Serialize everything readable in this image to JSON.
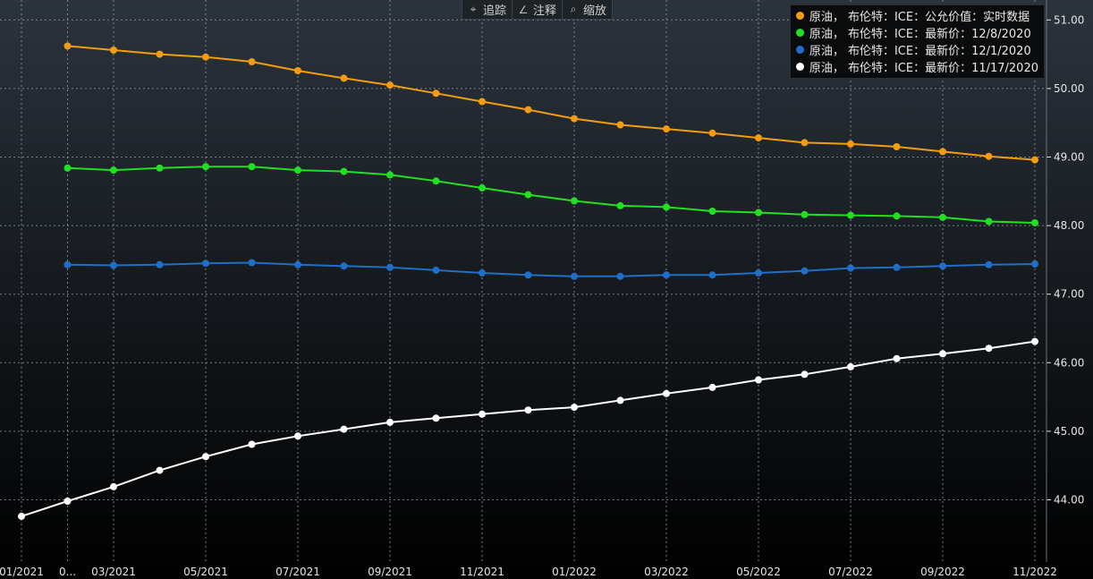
{
  "toolbar": {
    "items": [
      {
        "label": "追踪",
        "icon": "crosshair-icon",
        "glyph": "⌖"
      },
      {
        "label": "注释",
        "icon": "annotate-icon",
        "glyph": "∠"
      },
      {
        "label": "缩放",
        "icon": "zoom-icon",
        "glyph": "⌕"
      }
    ]
  },
  "colors": {
    "background_top": "#2b333c",
    "background_bottom": "#000000",
    "grid": "#9aa3ad",
    "axis_text": "#e6e6e6"
  },
  "chart_data": {
    "type": "line",
    "title": "",
    "xlabel": "",
    "ylabel": "",
    "legend_position": "top-right",
    "grid": true,
    "y_axis_side": "right",
    "ylim": [
      43.2,
      51.3
    ],
    "y_ticks": [
      44,
      45,
      46,
      47,
      48,
      49,
      50,
      51
    ],
    "y_tick_labels": [
      "44.00",
      "45.00",
      "46.00",
      "47.00",
      "48.00",
      "49.00",
      "50.00",
      "51.00"
    ],
    "x": [
      "2021-01",
      "2021-02",
      "2021-03",
      "2021-04",
      "2021-05",
      "2021-06",
      "2021-07",
      "2021-08",
      "2021-09",
      "2021-10",
      "2021-11",
      "2021-12",
      "2022-01",
      "2022-02",
      "2022-03",
      "2022-04",
      "2022-05",
      "2022-06",
      "2022-07",
      "2022-08",
      "2022-09",
      "2022-10",
      "2022-11"
    ],
    "x_tick_labels": [
      {
        "at": "2021-01",
        "label": "01/2021"
      },
      {
        "at": "2021-02",
        "label": "0..."
      },
      {
        "at": "2021-03",
        "label": "03/2021"
      },
      {
        "at": "2021-05",
        "label": "05/2021"
      },
      {
        "at": "2021-07",
        "label": "07/2021"
      },
      {
        "at": "2021-09",
        "label": "09/2021"
      },
      {
        "at": "2021-11",
        "label": "11/2021"
      },
      {
        "at": "2022-01",
        "label": "01/2022"
      },
      {
        "at": "2022-03",
        "label": "03/2022"
      },
      {
        "at": "2022-05",
        "label": "05/2022"
      },
      {
        "at": "2022-07",
        "label": "07/2022"
      },
      {
        "at": "2022-09",
        "label": "09/2022"
      },
      {
        "at": "2022-11",
        "label": "11/2022"
      }
    ],
    "series": [
      {
        "name": "原油， 布伦特：ICE：公允价值：实时数据",
        "color": "#f39c12",
        "values": [
          null,
          50.62,
          50.56,
          50.5,
          50.46,
          50.39,
          50.26,
          50.15,
          50.05,
          49.93,
          49.81,
          49.69,
          49.56,
          49.47,
          49.41,
          49.35,
          49.28,
          49.21,
          49.19,
          49.15,
          49.08,
          49.01,
          48.96
        ]
      },
      {
        "name": "原油， 布伦特：ICE：最新价：12/8/2020",
        "color": "#21e021",
        "values": [
          null,
          48.84,
          48.81,
          48.84,
          48.86,
          48.86,
          48.81,
          48.79,
          48.74,
          48.65,
          48.55,
          48.45,
          48.36,
          48.29,
          48.27,
          48.21,
          48.19,
          48.16,
          48.15,
          48.14,
          48.12,
          48.06,
          48.04
        ]
      },
      {
        "name": "原油， 布伦特：ICE：最新价：12/1/2020",
        "color": "#1f6fc8",
        "values": [
          null,
          47.43,
          47.42,
          47.43,
          47.45,
          47.46,
          47.43,
          47.41,
          47.39,
          47.35,
          47.31,
          47.28,
          47.26,
          47.26,
          47.28,
          47.28,
          47.31,
          47.34,
          47.38,
          47.39,
          47.41,
          47.43,
          47.44
        ]
      },
      {
        "name": "原油， 布伦特：ICE：最新价：11/17/2020",
        "color": "#ffffff",
        "values": [
          43.76,
          43.98,
          44.19,
          44.43,
          44.63,
          44.81,
          44.93,
          45.03,
          45.13,
          45.19,
          45.25,
          45.31,
          45.35,
          45.45,
          45.55,
          45.64,
          45.75,
          45.83,
          45.94,
          46.06,
          46.13,
          46.21,
          46.31
        ]
      }
    ]
  }
}
